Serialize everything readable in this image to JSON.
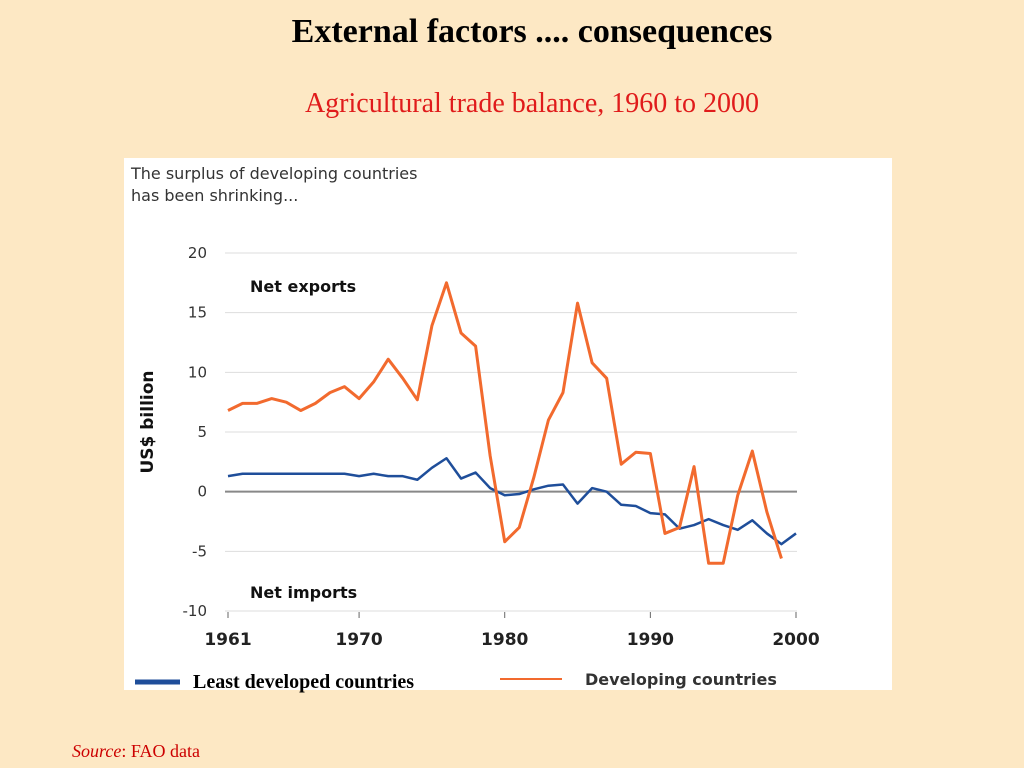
{
  "title": "External factors .... consequences",
  "subtitle": "Agricultural trade balance, 1960 to 2000",
  "source": {
    "label": "Source",
    "text": ": FAO data"
  },
  "chart_data": {
    "type": "line",
    "title": [
      "The surplus of developing countries",
      "has been shrinking..."
    ],
    "ylabel": "US$ billion",
    "annotations": [
      "Net exports",
      "Net imports"
    ],
    "x": [
      1961,
      1962,
      1963,
      1964,
      1965,
      1966,
      1967,
      1968,
      1969,
      1970,
      1971,
      1972,
      1973,
      1974,
      1975,
      1976,
      1977,
      1978,
      1979,
      1980,
      1981,
      1982,
      1983,
      1984,
      1985,
      1986,
      1987,
      1988,
      1989,
      1990,
      1991,
      1992,
      1993,
      1994,
      1995,
      1996,
      1997,
      1998,
      1999,
      2000
    ],
    "series": [
      {
        "name": "Least developed countries",
        "color": "#1f4e9a",
        "values": [
          1.3,
          1.5,
          1.5,
          1.5,
          1.5,
          1.5,
          1.5,
          1.5,
          1.5,
          1.3,
          1.5,
          1.3,
          1.3,
          1.0,
          2.0,
          2.8,
          1.1,
          1.6,
          0.3,
          -0.3,
          -0.2,
          0.2,
          0.5,
          0.6,
          -1.0,
          0.3,
          0,
          -1.1,
          -1.2,
          -1.8,
          -1.9,
          -3.1,
          -2.8,
          -2.3,
          -2.8,
          -3.2,
          -2.4,
          -3.5,
          -4.4,
          -3.5
        ]
      },
      {
        "name": "Developing countries",
        "color": "#f26a2e",
        "values": [
          6.8,
          7.4,
          7.4,
          7.8,
          7.5,
          6.8,
          7.4,
          8.3,
          8.8,
          7.8,
          9.2,
          11.1,
          9.5,
          7.7,
          13.9,
          17.5,
          13.3,
          12.2,
          3.0,
          -4.2,
          -3.0,
          1.2,
          6.0,
          8.3,
          15.8,
          10.8,
          9.5,
          2.3,
          3.3,
          3.2,
          -3.5,
          -3.0,
          2.1,
          -6.0,
          -6.0,
          -0.3,
          3.4,
          -1.7,
          -5.6,
          null
        ]
      }
    ],
    "xlim": [
      1961,
      2000
    ],
    "xticks": [
      1961,
      1970,
      1980,
      1990,
      2000
    ],
    "ylim": [
      -10,
      20
    ],
    "yticks": [
      -10,
      -5,
      0,
      5,
      10,
      15,
      20
    ],
    "grid": true
  }
}
